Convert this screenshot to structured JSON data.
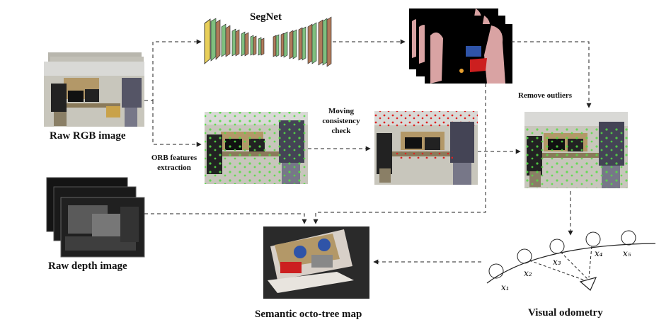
{
  "labels": {
    "segnet": "SegNet",
    "raw_rgb": "Raw RGB image",
    "raw_depth": "Raw depth image",
    "orb_line1": "ORB features",
    "orb_line2": "extraction",
    "moving_line1": "Moving",
    "moving_line2": "consistency",
    "moving_line3": "check",
    "remove_outliers": "Remove outliers",
    "octree": "Semantic octo-tree map",
    "odometry": "Visual odometry"
  },
  "poses": [
    "x₁",
    "x₂",
    "x₃",
    "x₄",
    "x₅"
  ],
  "colors": {
    "arrow": "#222222",
    "feature_green": "#55dd44",
    "feature_red": "#dd2222",
    "seg_person": "#d9a3a3",
    "seg_chair": "#cc1f1f",
    "seg_monitor": "#2f54a8",
    "seg_background": "#000000",
    "octree_background": "#2a2a2a"
  }
}
